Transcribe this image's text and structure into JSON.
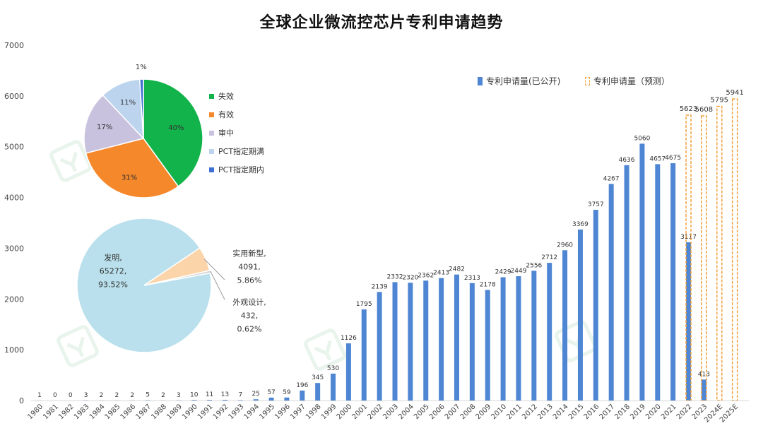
{
  "title": "全球企业微流控芯片专利申请趋势",
  "colors": {
    "bar": "#4f86d3",
    "forecast": "#f2a13c",
    "pie1": [
      "#12b34a",
      "#f4882a",
      "#c9c2df",
      "#bcd4ee",
      "#3e6fd2"
    ],
    "pie2": [
      "#b9e0ec",
      "#fcd4a9",
      "#d4d4d4"
    ]
  },
  "chart_data": [
    {
      "type": "bar",
      "title": "全球企业微流控芯片专利申请趋势",
      "ylim": [
        0,
        7000
      ],
      "yticks": [
        0,
        1000,
        2000,
        3000,
        4000,
        5000,
        6000,
        7000
      ],
      "legend": [
        "专利申请量(已公开)",
        "专利申请量（预测）"
      ],
      "categories": [
        "1980",
        "1981",
        "1982",
        "1983",
        "1984",
        "1985",
        "1986",
        "1987",
        "1988",
        "1989",
        "1990",
        "1991",
        "1992",
        "1993",
        "1994",
        "1995",
        "1996",
        "1997",
        "1998",
        "1999",
        "2000",
        "2001",
        "2002",
        "2003",
        "2004",
        "2005",
        "2006",
        "2007",
        "2008",
        "2009",
        "2010",
        "2011",
        "2012",
        "2013",
        "2014",
        "2015",
        "2016",
        "2017",
        "2018",
        "2019",
        "2020",
        "2021",
        "2022",
        "2023",
        "2024E",
        "2025E"
      ],
      "series": [
        {
          "name": "专利申请量(已公开)",
          "values": [
            1,
            0,
            0,
            3,
            2,
            2,
            2,
            5,
            2,
            3,
            10,
            11,
            13,
            7,
            25,
            57,
            59,
            196,
            345,
            530,
            1126,
            1795,
            2139,
            2332,
            2320,
            2362,
            2413,
            2482,
            2313,
            2178,
            2429,
            2449,
            2556,
            2712,
            2960,
            3369,
            3757,
            4267,
            4636,
            5060,
            4657,
            4675,
            3117,
            413,
            null,
            null
          ]
        },
        {
          "name": "专利申请量（预测）",
          "values": [
            null,
            null,
            null,
            null,
            null,
            null,
            null,
            null,
            null,
            null,
            null,
            null,
            null,
            null,
            null,
            null,
            null,
            null,
            null,
            null,
            null,
            null,
            null,
            null,
            null,
            null,
            null,
            null,
            null,
            null,
            null,
            null,
            null,
            null,
            null,
            null,
            null,
            null,
            null,
            null,
            null,
            null,
            5623,
            5608,
            5795,
            5941
          ]
        }
      ]
    },
    {
      "type": "pie",
      "categories": [
        "失效",
        "有效",
        "审中",
        "PCT指定期满",
        "PCT指定期内"
      ],
      "values": [
        40,
        31,
        17,
        11,
        1
      ],
      "labels": [
        "40%",
        "31%",
        "17%",
        "11%",
        "1%"
      ]
    },
    {
      "type": "pie",
      "categories": [
        "发明",
        "实用新型",
        "外观设计"
      ],
      "values": [
        65272,
        4091,
        432
      ],
      "percents": [
        "93.52%",
        "5.86%",
        "0.62%"
      ],
      "labels": [
        {
          "name": "发明,",
          "value": "65272,",
          "percent": "93.52%"
        },
        {
          "name": "实用新型,",
          "value": "4091,",
          "percent": "5.86%"
        },
        {
          "name": "外观设计,",
          "value": "432,",
          "percent": "0.62%"
        }
      ]
    }
  ]
}
